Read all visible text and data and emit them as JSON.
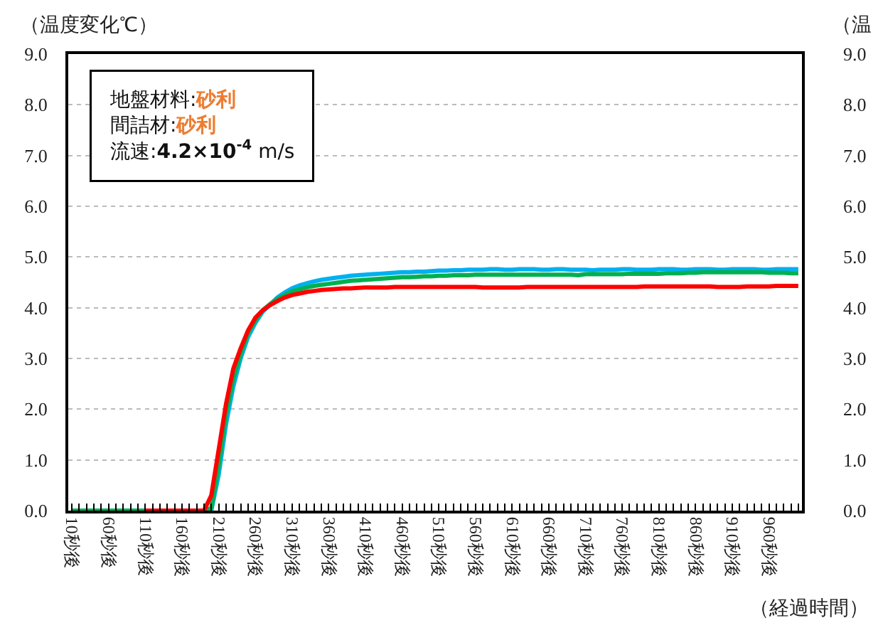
{
  "chart_data": {
    "type": "line",
    "ylabel": "（温度変化℃）",
    "y2label": "（温",
    "xlabel": "（経過時間）",
    "annotations": [
      "地盤材料:砂利",
      "間詰材:砂利",
      "流速:4.2×10$^{-4}$ m/s"
    ],
    "categories": [
      "10秒後",
      null,
      null,
      null,
      null,
      "60秒後",
      null,
      null,
      null,
      null,
      "110秒後",
      null,
      null,
      null,
      null,
      "160秒後",
      null,
      null,
      null,
      null,
      "210秒後",
      null,
      null,
      null,
      null,
      "260秒後",
      null,
      null,
      null,
      null,
      "310秒後",
      null,
      null,
      null,
      null,
      "360秒後",
      null,
      null,
      null,
      null,
      "410秒後",
      null,
      null,
      null,
      null,
      "460秒後",
      null,
      null,
      null,
      null,
      "510秒後",
      null,
      null,
      null,
      null,
      "560秒後",
      null,
      null,
      null,
      null,
      "610秒後",
      null,
      null,
      null,
      null,
      "660秒後",
      null,
      null,
      null,
      null,
      "710秒後",
      null,
      null,
      null,
      null,
      "760秒後",
      null,
      null,
      null,
      null,
      "810秒後",
      null,
      null,
      null,
      null,
      "860秒後",
      null,
      null,
      null,
      null,
      "910秒後",
      null,
      null,
      null,
      null,
      "960秒後",
      null,
      null,
      null,
      null
    ],
    "series": [
      {
        "color": "#00b0f0",
        "values": [
          null,
          null,
          null,
          null,
          null,
          null,
          null,
          null,
          null,
          null,
          null,
          null,
          null,
          null,
          null,
          null,
          null,
          null,
          null,
          0,
          0.7,
          1.7,
          2.45,
          3.0,
          3.42,
          3.7,
          3.92,
          4.06,
          4.2,
          4.3,
          4.38,
          4.44,
          4.48,
          4.52,
          4.55,
          4.57,
          4.59,
          4.61,
          4.63,
          4.64,
          4.65,
          4.66,
          4.67,
          4.68,
          4.69,
          4.7,
          4.7,
          4.71,
          4.71,
          4.72,
          4.73,
          4.73,
          4.74,
          4.74,
          4.75,
          4.75,
          4.75,
          4.76,
          4.76,
          4.75,
          4.75,
          4.76,
          4.76,
          4.76,
          4.75,
          4.75,
          4.76,
          4.76,
          4.75,
          4.75,
          4.75,
          4.74,
          4.75,
          4.75,
          4.75,
          4.76,
          4.76,
          4.75,
          4.75,
          4.75,
          4.76,
          4.76,
          4.76,
          4.75,
          4.75,
          4.76,
          4.76,
          4.76,
          4.75,
          4.75,
          4.76,
          4.76,
          4.76,
          4.76,
          4.75,
          4.75,
          4.76,
          4.76,
          4.76,
          4.76
        ]
      },
      {
        "color": "#00b050",
        "values": [
          0,
          0,
          0,
          0,
          0,
          0,
          0,
          0,
          0,
          0,
          0,
          0,
          0,
          0,
          0,
          0,
          0,
          0,
          0,
          0.05,
          0.9,
          1.9,
          2.6,
          3.1,
          3.5,
          3.75,
          3.95,
          4.07,
          4.17,
          4.25,
          4.32,
          4.36,
          4.4,
          4.43,
          4.45,
          4.47,
          4.49,
          4.51,
          4.53,
          4.54,
          4.55,
          4.56,
          4.57,
          4.58,
          4.59,
          4.6,
          4.6,
          4.61,
          4.62,
          4.62,
          4.63,
          4.63,
          4.64,
          4.64,
          4.64,
          4.65,
          4.65,
          4.65,
          4.65,
          4.65,
          4.65,
          4.65,
          4.65,
          4.65,
          4.65,
          4.65,
          4.65,
          4.65,
          4.65,
          4.64,
          4.66,
          4.66,
          4.66,
          4.66,
          4.66,
          4.66,
          4.67,
          4.67,
          4.67,
          4.67,
          4.67,
          4.68,
          4.68,
          4.68,
          4.69,
          4.69,
          4.7,
          4.7,
          4.7,
          4.7,
          4.7,
          4.7,
          4.7,
          4.7,
          4.7,
          4.69,
          4.69,
          4.69,
          4.68,
          4.68
        ]
      },
      {
        "color": "#ff0000",
        "values": [
          null,
          null,
          null,
          null,
          null,
          null,
          null,
          null,
          null,
          null,
          0,
          0,
          0,
          0,
          0,
          0,
          0,
          0,
          0,
          0.3,
          1.2,
          2.1,
          2.8,
          3.2,
          3.55,
          3.8,
          3.95,
          4.05,
          4.13,
          4.2,
          4.25,
          4.28,
          4.31,
          4.33,
          4.35,
          4.36,
          4.37,
          4.38,
          4.38,
          4.39,
          4.4,
          4.4,
          4.4,
          4.4,
          4.41,
          4.41,
          4.41,
          4.41,
          4.41,
          4.41,
          4.41,
          4.41,
          4.41,
          4.41,
          4.41,
          4.41,
          4.4,
          4.4,
          4.4,
          4.4,
          4.4,
          4.4,
          4.41,
          4.41,
          4.41,
          4.41,
          4.41,
          4.41,
          4.41,
          4.41,
          4.41,
          4.41,
          4.41,
          4.41,
          4.41,
          4.41,
          4.41,
          4.41,
          4.42,
          4.42,
          4.42,
          4.42,
          4.42,
          4.42,
          4.42,
          4.42,
          4.42,
          4.42,
          4.41,
          4.41,
          4.41,
          4.41,
          4.42,
          4.42,
          4.42,
          4.42,
          4.43,
          4.43,
          4.43,
          4.43
        ]
      }
    ],
    "ylim": [
      0,
      9
    ],
    "yticks": [
      {
        "value": 0,
        "label": "0.0"
      },
      {
        "value": 1,
        "label": "1.0"
      },
      {
        "value": 2,
        "label": "2.0"
      },
      {
        "value": 3,
        "label": "3.0"
      },
      {
        "value": 4,
        "label": "4.0"
      },
      {
        "value": 5,
        "label": "5.0"
      },
      {
        "value": 6,
        "label": "6.0"
      },
      {
        "value": 7,
        "label": "7.0"
      },
      {
        "value": 8,
        "label": "8.0"
      },
      {
        "value": 9,
        "label": "9.0"
      }
    ],
    "y2lim": [
      0,
      9
    ],
    "y2ticks": [
      {
        "value": 0,
        "label": "0.0"
      },
      {
        "value": 1,
        "label": "1.0"
      },
      {
        "value": 2,
        "label": "2.0"
      },
      {
        "value": 3,
        "label": "3.0"
      },
      {
        "value": 4,
        "label": "4.0"
      },
      {
        "value": 5,
        "label": "5.0"
      },
      {
        "value": 6,
        "label": "6.0"
      },
      {
        "value": 7,
        "label": "7.0"
      },
      {
        "value": 8,
        "label": "8.0"
      },
      {
        "value": 9,
        "label": "9.0"
      }
    ],
    "grid": "y",
    "marker": "none",
    "line_style": "solid"
  }
}
